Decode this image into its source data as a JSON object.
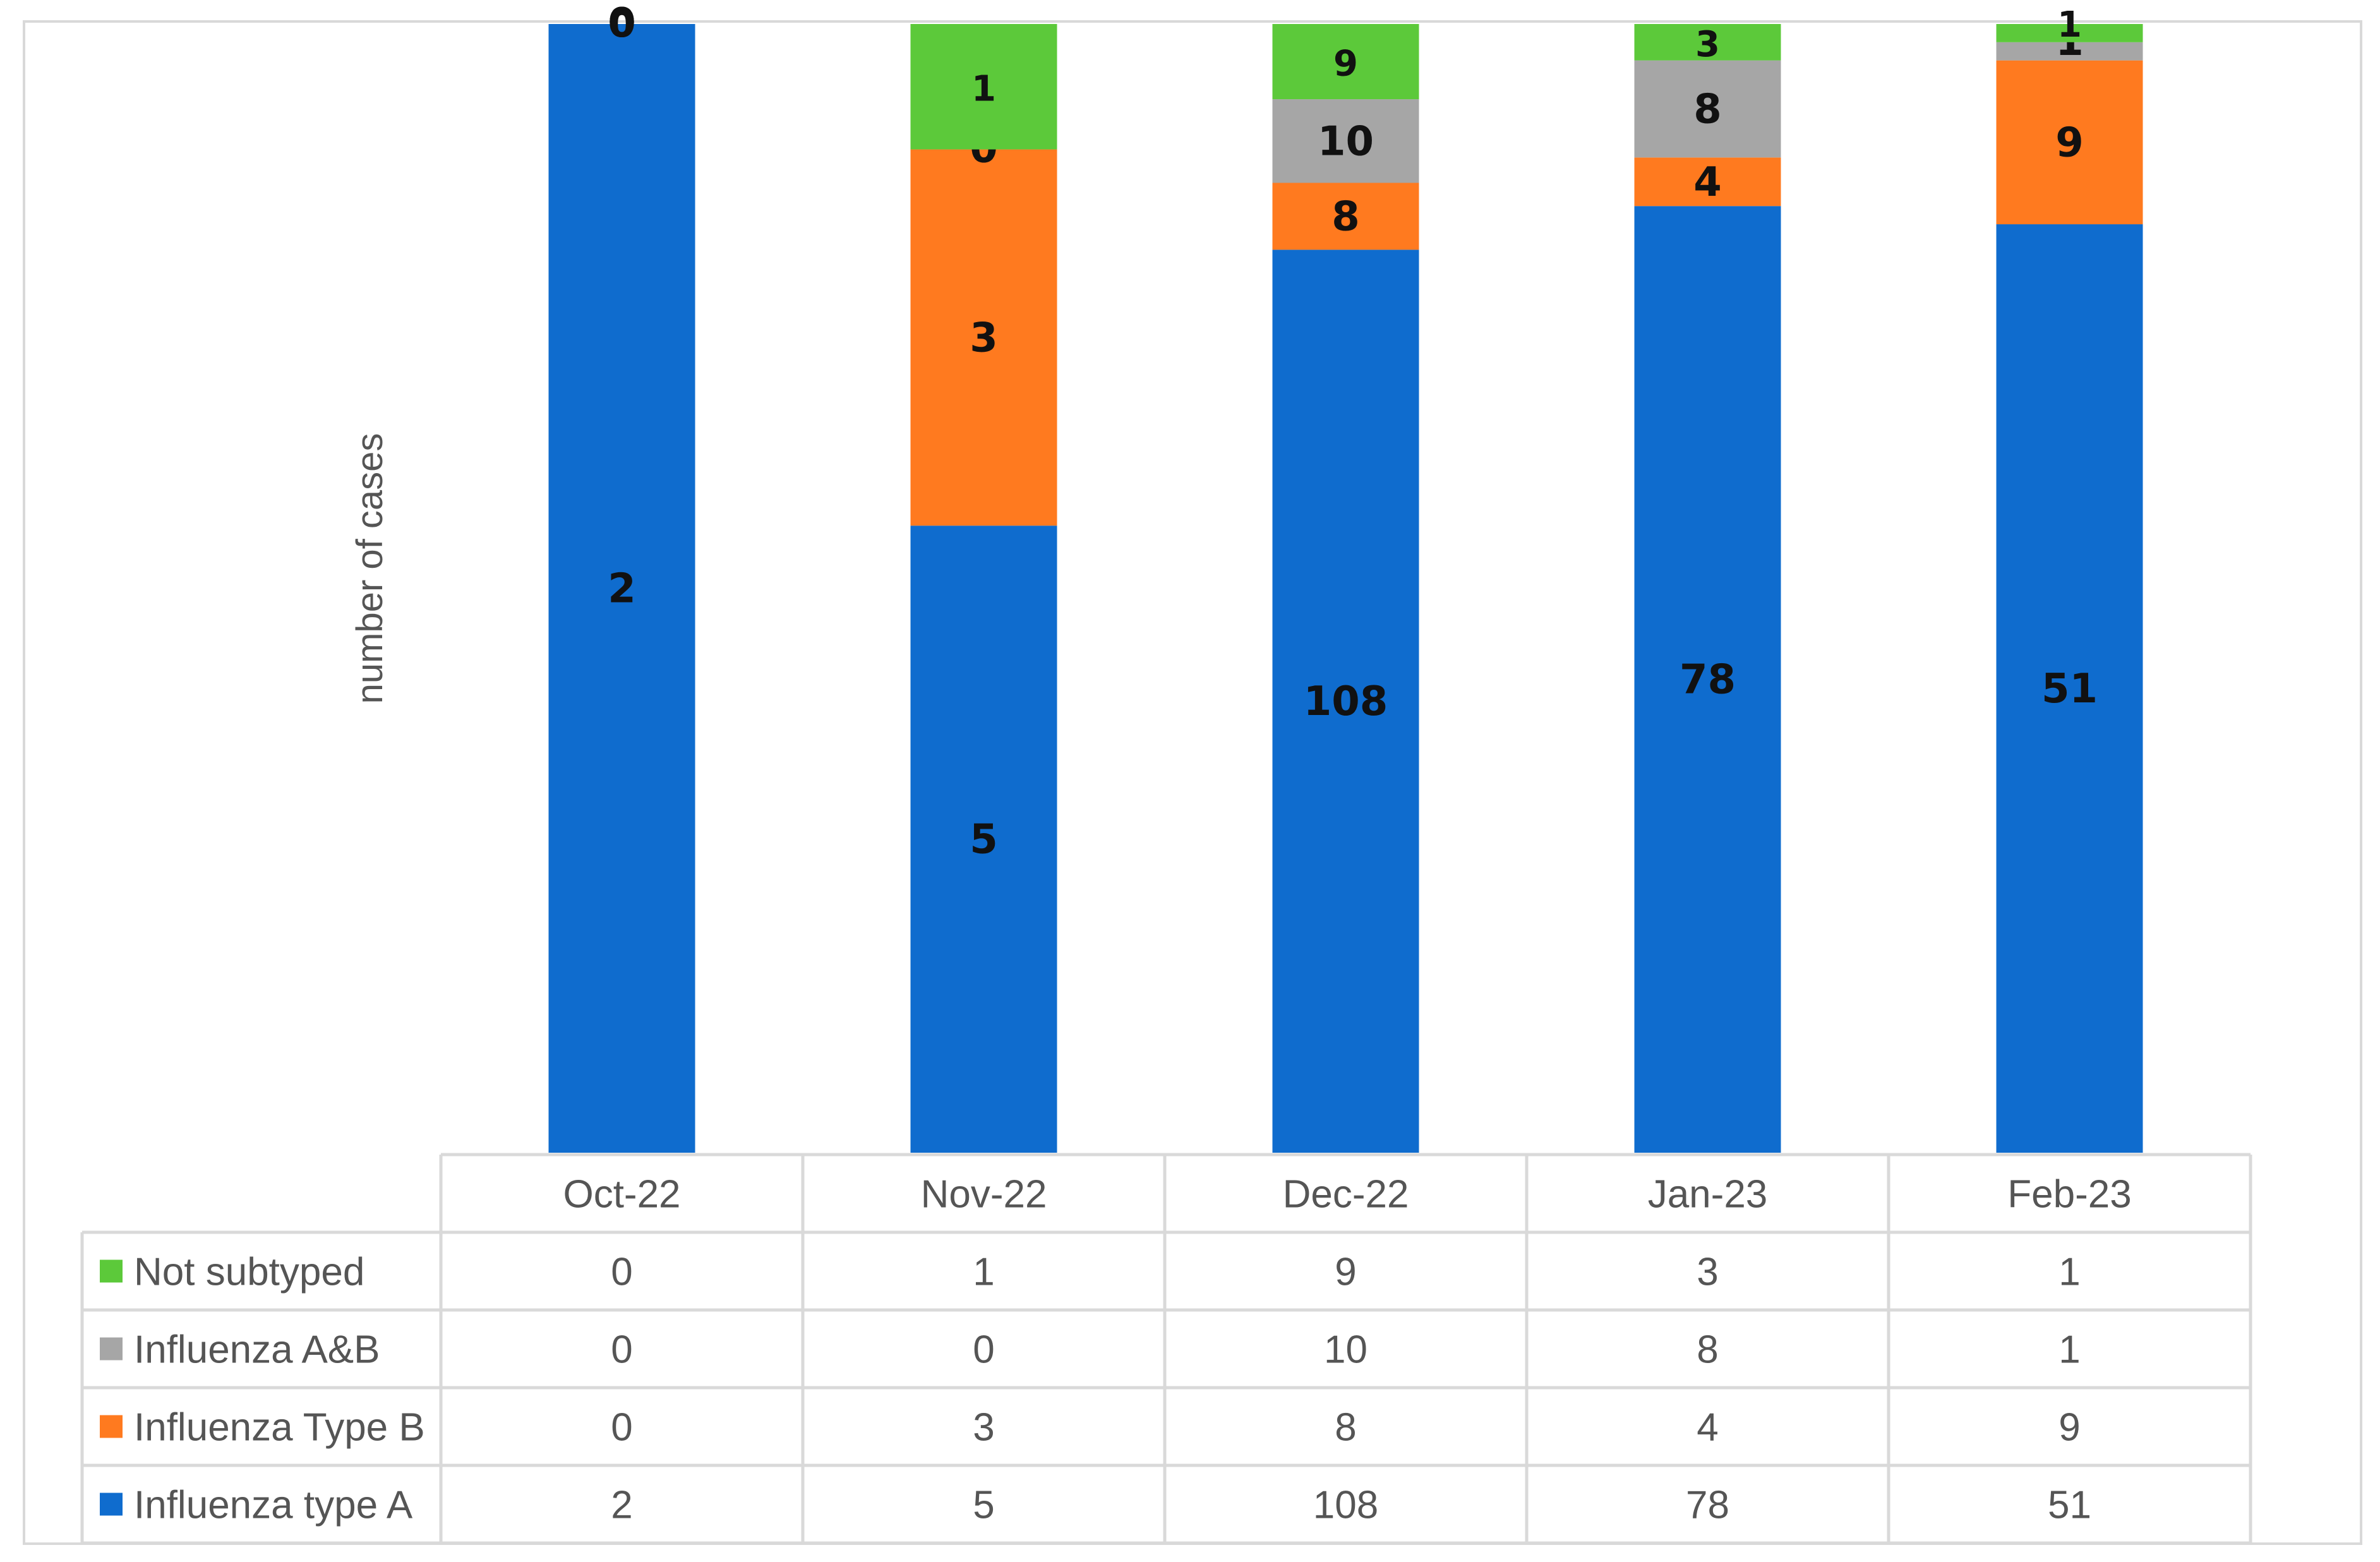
{
  "chart_data": {
    "type": "bar",
    "stacked": true,
    "categories": [
      "Oct-22",
      "Nov-22",
      "Dec-22",
      "Jan-23",
      "Feb-23"
    ],
    "series": [
      {
        "name": "Influenza type A",
        "values": [
          2,
          5,
          108,
          78,
          51
        ],
        "color": "#0f6cce"
      },
      {
        "name": "Influenza Type B",
        "values": [
          0,
          3,
          8,
          4,
          9
        ],
        "color": "#ff7a1f"
      },
      {
        "name": "Influenza A&B",
        "values": [
          0,
          0,
          10,
          8,
          1
        ],
        "color": "#a6a6a6"
      },
      {
        "name": "Not subtyped",
        "values": [
          0,
          1,
          9,
          3,
          1
        ],
        "color": "#5cc93a"
      }
    ],
    "table_row_order": [
      "Not subtyped",
      "Influenza A&B",
      "Influenza Type B",
      "Influenza type A"
    ],
    "ylabel": "number of cases",
    "xlabel": "",
    "title": "",
    "stack_mode": "percent",
    "data_table": true,
    "grid": false
  }
}
